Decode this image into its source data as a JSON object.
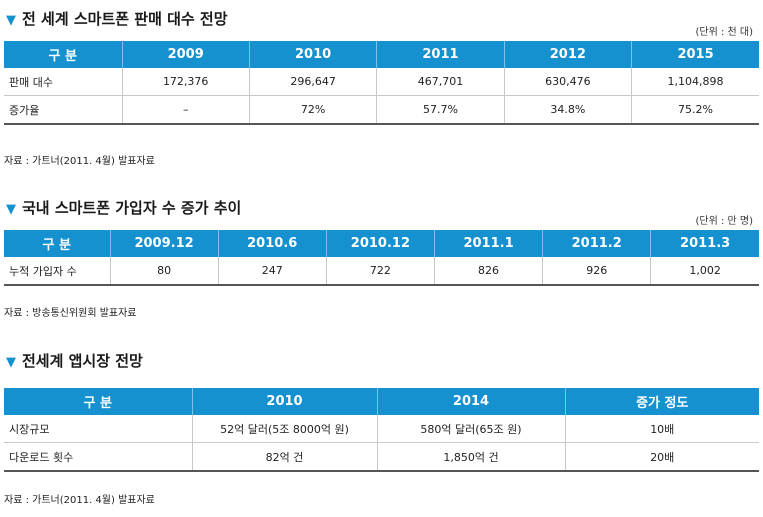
{
  "table1": {
    "title": "전 세계 스마트폰 판매 대수 전망",
    "unit": "(단위 : 천 대)",
    "headers": [
      "구 분",
      "2009",
      "2010",
      "2011",
      "2012",
      "2015"
    ],
    "rows": [
      [
        "판매 대수",
        "172,376",
        "296,647",
        "467,701",
        "630,476",
        "1,104,898"
      ],
      [
        "증가율",
        "–",
        "72%",
        "57.7%",
        "34.8%",
        "75.2%"
      ]
    ],
    "source": "자료 : 가트너(2011. 4월) 발표자료"
  },
  "table2": {
    "title": "국내 스마트폰 가입자 수 증가 추이",
    "unit": "(단위 : 만 명)",
    "headers": [
      "구 분",
      "2009.12",
      "2010.6",
      "2010.12",
      "2011.1",
      "2011.2",
      "2011.3"
    ],
    "rows": [
      [
        "누적 가입자 수",
        "80",
        "247",
        "722",
        "826",
        "926",
        "1,002"
      ]
    ],
    "source": "자료 : 방송통신위원회 발표자료"
  },
  "table3": {
    "title": "전세계 앱시장 전망",
    "headers": [
      "구 분",
      "2010",
      "2014",
      "증가 정도"
    ],
    "rows": [
      [
        "시장규모",
        "52억 달러(5조 8000억 원)",
        "580억 달러(65조 원)",
        "10배"
      ],
      [
        "다운로드 횟수",
        "82억 건",
        "1,850억 건",
        "20배"
      ]
    ],
    "source": "자료 : 가트너(2011. 4월) 발표자료"
  },
  "colors": {
    "header_bg": "#1591cf",
    "title_marker": "#1591cf"
  },
  "icons": {
    "title_marker": "down-triangle-icon"
  }
}
